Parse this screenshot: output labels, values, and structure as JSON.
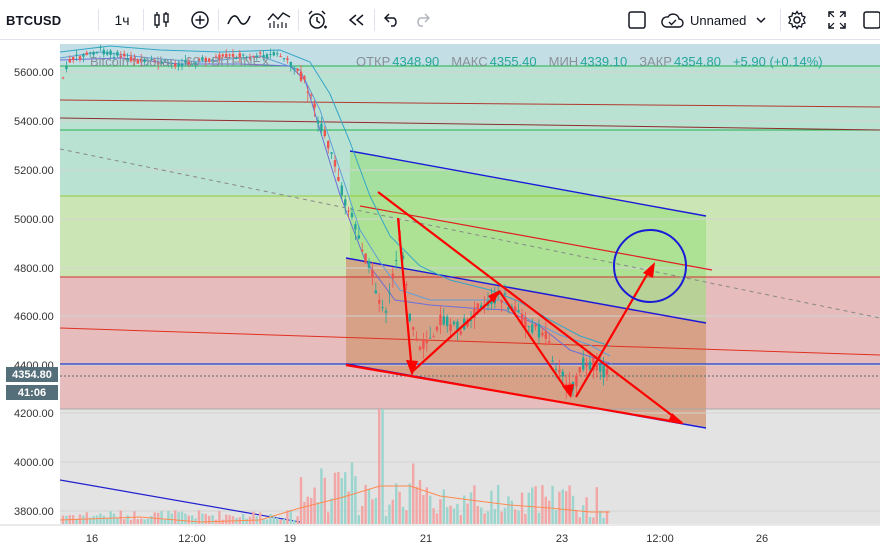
{
  "toolbar": {
    "symbol": "BTCUSD",
    "interval": "1ч",
    "layout_name": "Unnamed"
  },
  "legend": {
    "title": "Bitcoin / Dollar · 60 · BITFINEX"
  },
  "ohlc": {
    "open_label": "ОТКР",
    "open": "4348.90",
    "high_label": "МАКС",
    "high": "4355.40",
    "low_label": "МИН",
    "low": "4339.10",
    "close_label": "ЗАКР",
    "close": "4354.80",
    "change": "+5.90 (+0.14%)"
  },
  "price_axis": {
    "ticks": [
      "5600.00",
      "5400.00",
      "5200.00",
      "5000.00",
      "4800.00",
      "4600.00",
      "4400.00",
      "4200.00",
      "4000.00",
      "3800.00"
    ],
    "current_price": "4354.80",
    "countdown": "41:06"
  },
  "time_axis": {
    "ticks": [
      "16",
      "12:00",
      "19",
      "21",
      "23",
      "12:00",
      "26"
    ]
  },
  "colors": {
    "up": "#26a69a",
    "down": "#ef5350",
    "red_drawing": "#ff0000",
    "blue_drawing": "#1010e0",
    "price_badge": "#546e7a"
  },
  "icons": [
    "indicators-icon",
    "plus-circle-icon",
    "wave-icon",
    "bars-icon",
    "alarm-icon",
    "rewind-icon",
    "undo-icon",
    "redo-icon",
    "square-icon",
    "cloud-icon",
    "chevron-down-icon",
    "gear-icon",
    "expand-icon"
  ]
}
